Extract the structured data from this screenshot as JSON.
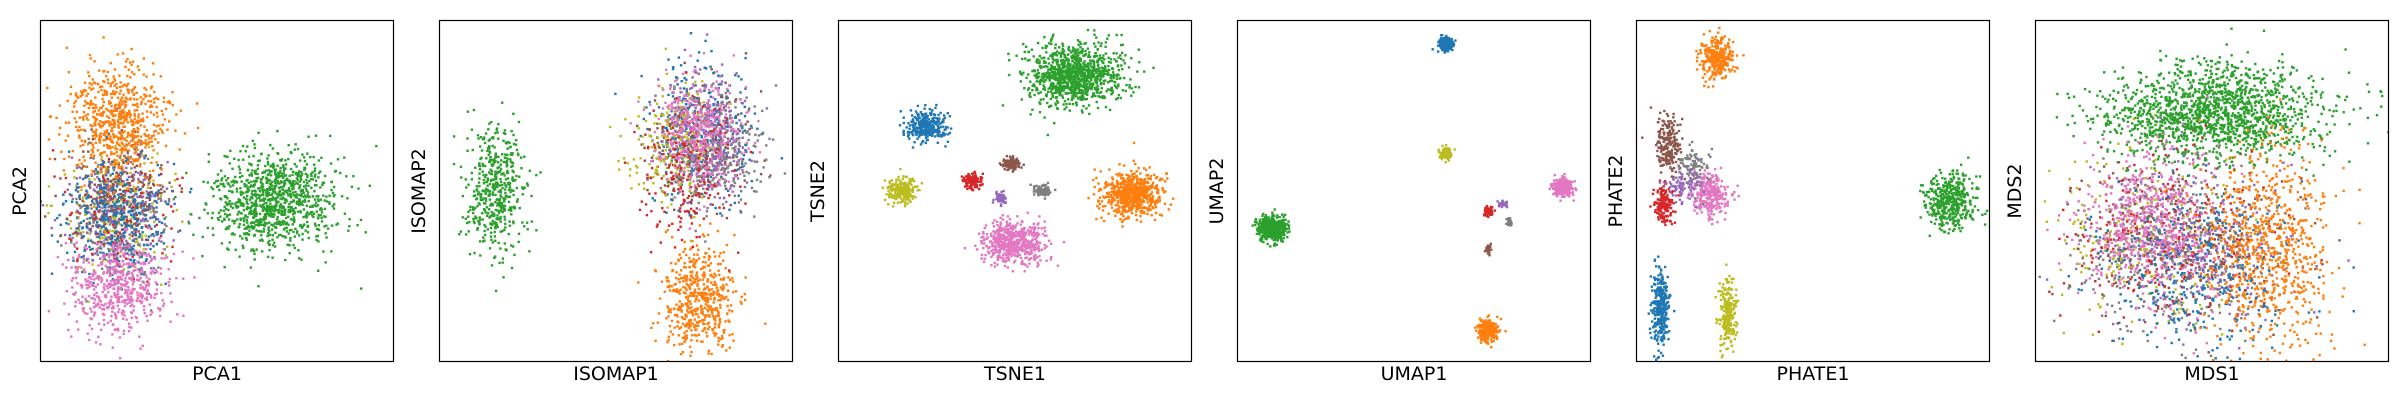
{
  "colors": {
    "blue": "#1f77b4",
    "orange": "#ff7f0e",
    "green": "#2ca02c",
    "red": "#d62728",
    "purple": "#9467bd",
    "brown": "#8c564b",
    "pink": "#e377c2",
    "gray": "#7f7f7f",
    "olive": "#bcbd22"
  },
  "chart_data": [
    {
      "type": "scatter",
      "xlabel": "PCA1",
      "ylabel": "PCA2",
      "xlim": [
        0,
        1
      ],
      "ylim": [
        0,
        1
      ],
      "ticks": false,
      "grid": false,
      "clusters": [
        {
          "color": "olive",
          "center": [
            0.22,
            0.45
          ],
          "spread": [
            0.07,
            0.09
          ],
          "approx_points": 400
        },
        {
          "color": "gray",
          "center": [
            0.22,
            0.42
          ],
          "spread": [
            0.07,
            0.09
          ],
          "approx_points": 400
        },
        {
          "color": "red",
          "center": [
            0.22,
            0.43
          ],
          "spread": [
            0.07,
            0.08
          ],
          "approx_points": 300
        },
        {
          "color": "purple",
          "center": [
            0.23,
            0.44
          ],
          "spread": [
            0.07,
            0.09
          ],
          "approx_points": 300
        },
        {
          "color": "brown",
          "center": [
            0.22,
            0.5
          ],
          "spread": [
            0.07,
            0.08
          ],
          "approx_points": 300
        },
        {
          "color": "blue",
          "center": [
            0.22,
            0.42
          ],
          "spread": [
            0.07,
            0.09
          ],
          "approx_points": 600
        },
        {
          "color": "pink",
          "center": [
            0.22,
            0.22
          ],
          "spread": [
            0.07,
            0.07
          ],
          "approx_points": 900
        },
        {
          "color": "orange",
          "center": [
            0.22,
            0.7
          ],
          "spread": [
            0.07,
            0.08
          ],
          "approx_points": 1100
        },
        {
          "color": "green",
          "center": [
            0.66,
            0.47
          ],
          "spread": [
            0.09,
            0.07
          ],
          "approx_points": 1700
        }
      ]
    },
    {
      "type": "scatter",
      "xlabel": "ISOMAP1",
      "ylabel": "ISOMAP2",
      "xlim": [
        0,
        1
      ],
      "ylim": [
        0,
        1
      ],
      "ticks": false,
      "grid": false,
      "clusters": [
        {
          "color": "green",
          "center": [
            0.16,
            0.5
          ],
          "spread": [
            0.04,
            0.1
          ],
          "approx_points": 800
        },
        {
          "color": "orange",
          "center": [
            0.73,
            0.18
          ],
          "spread": [
            0.05,
            0.08
          ],
          "approx_points": 900
        },
        {
          "color": "blue",
          "center": [
            0.74,
            0.67
          ],
          "spread": [
            0.07,
            0.1
          ],
          "approx_points": 600
        },
        {
          "color": "brown",
          "center": [
            0.73,
            0.62
          ],
          "spread": [
            0.07,
            0.09
          ],
          "approx_points": 400
        },
        {
          "color": "olive",
          "center": [
            0.67,
            0.63
          ],
          "spread": [
            0.06,
            0.09
          ],
          "approx_points": 400
        },
        {
          "color": "gray",
          "center": [
            0.8,
            0.6
          ],
          "spread": [
            0.06,
            0.09
          ],
          "approx_points": 400
        },
        {
          "color": "purple",
          "center": [
            0.76,
            0.66
          ],
          "spread": [
            0.06,
            0.09
          ],
          "approx_points": 400
        },
        {
          "color": "red",
          "center": [
            0.7,
            0.56
          ],
          "spread": [
            0.07,
            0.1
          ],
          "approx_points": 300
        },
        {
          "color": "pink",
          "center": [
            0.73,
            0.68
          ],
          "spread": [
            0.06,
            0.08
          ],
          "approx_points": 600
        }
      ]
    },
    {
      "type": "scatter",
      "xlabel": "TSNE1",
      "ylabel": "TSNE2",
      "xlim": [
        0,
        1
      ],
      "ylim": [
        0,
        1
      ],
      "ticks": false,
      "grid": false,
      "clusters": [
        {
          "color": "green",
          "center": [
            0.67,
            0.84
          ],
          "spread": [
            0.065,
            0.045
          ],
          "approx_points": 1700
        },
        {
          "color": "blue",
          "center": [
            0.25,
            0.69
          ],
          "spread": [
            0.028,
            0.022
          ],
          "approx_points": 500
        },
        {
          "color": "olive",
          "center": [
            0.18,
            0.5
          ],
          "spread": [
            0.02,
            0.018
          ],
          "approx_points": 400
        },
        {
          "color": "red",
          "center": [
            0.38,
            0.53
          ],
          "spread": [
            0.013,
            0.012
          ],
          "approx_points": 200
        },
        {
          "color": "brown",
          "center": [
            0.49,
            0.58
          ],
          "spread": [
            0.013,
            0.01
          ],
          "approx_points": 200
        },
        {
          "color": "purple",
          "center": [
            0.46,
            0.48
          ],
          "spread": [
            0.008,
            0.008
          ],
          "approx_points": 100
        },
        {
          "color": "gray",
          "center": [
            0.58,
            0.5
          ],
          "spread": [
            0.013,
            0.008
          ],
          "approx_points": 150
        },
        {
          "color": "orange",
          "center": [
            0.83,
            0.49
          ],
          "spread": [
            0.04,
            0.03
          ],
          "approx_points": 1100
        },
        {
          "color": "pink",
          "center": [
            0.5,
            0.35
          ],
          "spread": [
            0.045,
            0.032
          ],
          "approx_points": 900
        }
      ]
    },
    {
      "type": "scatter",
      "xlabel": "UMAP1",
      "ylabel": "UMAP2",
      "xlim": [
        0,
        1
      ],
      "ylim": [
        0,
        1
      ],
      "ticks": false,
      "grid": false,
      "clusters": [
        {
          "color": "blue",
          "center": [
            0.59,
            0.93
          ],
          "spread": [
            0.01,
            0.01
          ],
          "approx_points": 400
        },
        {
          "color": "olive",
          "center": [
            0.59,
            0.61
          ],
          "spread": [
            0.008,
            0.008
          ],
          "approx_points": 200
        },
        {
          "color": "pink",
          "center": [
            0.92,
            0.51
          ],
          "spread": [
            0.014,
            0.014
          ],
          "approx_points": 500
        },
        {
          "color": "green",
          "center": [
            0.1,
            0.39
          ],
          "spread": [
            0.02,
            0.017
          ],
          "approx_points": 900
        },
        {
          "color": "red",
          "center": [
            0.71,
            0.44
          ],
          "spread": [
            0.007,
            0.007
          ],
          "approx_points": 100
        },
        {
          "color": "purple",
          "center": [
            0.75,
            0.46
          ],
          "spread": [
            0.008,
            0.004
          ],
          "approx_points": 60
        },
        {
          "color": "gray",
          "center": [
            0.77,
            0.41
          ],
          "spread": [
            0.004,
            0.006
          ],
          "approx_points": 60
        },
        {
          "color": "brown",
          "center": [
            0.71,
            0.33
          ],
          "spread": [
            0.004,
            0.006
          ],
          "approx_points": 60
        },
        {
          "color": "orange",
          "center": [
            0.71,
            0.09
          ],
          "spread": [
            0.014,
            0.014
          ],
          "approx_points": 500
        }
      ]
    },
    {
      "type": "scatter",
      "xlabel": "PHATE1",
      "ylabel": "PHATE2",
      "xlim": [
        0,
        1
      ],
      "ylim": [
        0,
        1
      ],
      "ticks": false,
      "grid": false,
      "clusters": [
        {
          "color": "orange",
          "center": [
            0.23,
            0.89
          ],
          "spread": [
            0.022,
            0.03
          ],
          "approx_points": 500
        },
        {
          "color": "brown",
          "center": [
            0.09,
            0.63
          ],
          "spread": [
            0.018,
            0.045
          ],
          "approx_points": 350
        },
        {
          "color": "red",
          "center": [
            0.08,
            0.46
          ],
          "spread": [
            0.014,
            0.03
          ],
          "approx_points": 250
        },
        {
          "color": "pink",
          "center": [
            0.21,
            0.49
          ],
          "spread": [
            0.025,
            0.03
          ],
          "approx_points": 500
        },
        {
          "color": "gray",
          "center": [
            0.16,
            0.57
          ],
          "spread": [
            0.02,
            0.03
          ],
          "approx_points": 150
        },
        {
          "color": "purple",
          "center": [
            0.13,
            0.52
          ],
          "spread": [
            0.02,
            0.03
          ],
          "approx_points": 120
        },
        {
          "color": "blue",
          "center": [
            0.07,
            0.16
          ],
          "spread": [
            0.012,
            0.06
          ],
          "approx_points": 500
        },
        {
          "color": "olive",
          "center": [
            0.26,
            0.14
          ],
          "spread": [
            0.012,
            0.05
          ],
          "approx_points": 400
        },
        {
          "color": "green",
          "center": [
            0.89,
            0.47
          ],
          "spread": [
            0.035,
            0.04
          ],
          "approx_points": 700
        }
      ]
    },
    {
      "type": "scatter",
      "xlabel": "MDS1",
      "ylabel": "MDS2",
      "xlim": [
        0,
        1
      ],
      "ylim": [
        0,
        1
      ],
      "ticks": false,
      "grid": false,
      "clusters": [
        {
          "color": "green",
          "center": [
            0.5,
            0.73
          ],
          "spread": [
            0.16,
            0.07
          ],
          "approx_points": 2600
        },
        {
          "color": "olive",
          "center": [
            0.3,
            0.36
          ],
          "spread": [
            0.13,
            0.12
          ],
          "approx_points": 500
        },
        {
          "color": "gray",
          "center": [
            0.4,
            0.3
          ],
          "spread": [
            0.15,
            0.12
          ],
          "approx_points": 500
        },
        {
          "color": "brown",
          "center": [
            0.42,
            0.38
          ],
          "spread": [
            0.14,
            0.12
          ],
          "approx_points": 500
        },
        {
          "color": "purple",
          "center": [
            0.45,
            0.33
          ],
          "spread": [
            0.14,
            0.12
          ],
          "approx_points": 400
        },
        {
          "color": "red",
          "center": [
            0.4,
            0.36
          ],
          "spread": [
            0.14,
            0.12
          ],
          "approx_points": 400
        },
        {
          "color": "blue",
          "center": [
            0.46,
            0.28
          ],
          "spread": [
            0.13,
            0.12
          ],
          "approx_points": 700
        },
        {
          "color": "pink",
          "center": [
            0.33,
            0.4
          ],
          "spread": [
            0.1,
            0.11
          ],
          "approx_points": 1000
        },
        {
          "color": "orange",
          "center": [
            0.65,
            0.33
          ],
          "spread": [
            0.09,
            0.14
          ],
          "approx_points": 1300
        }
      ]
    }
  ]
}
